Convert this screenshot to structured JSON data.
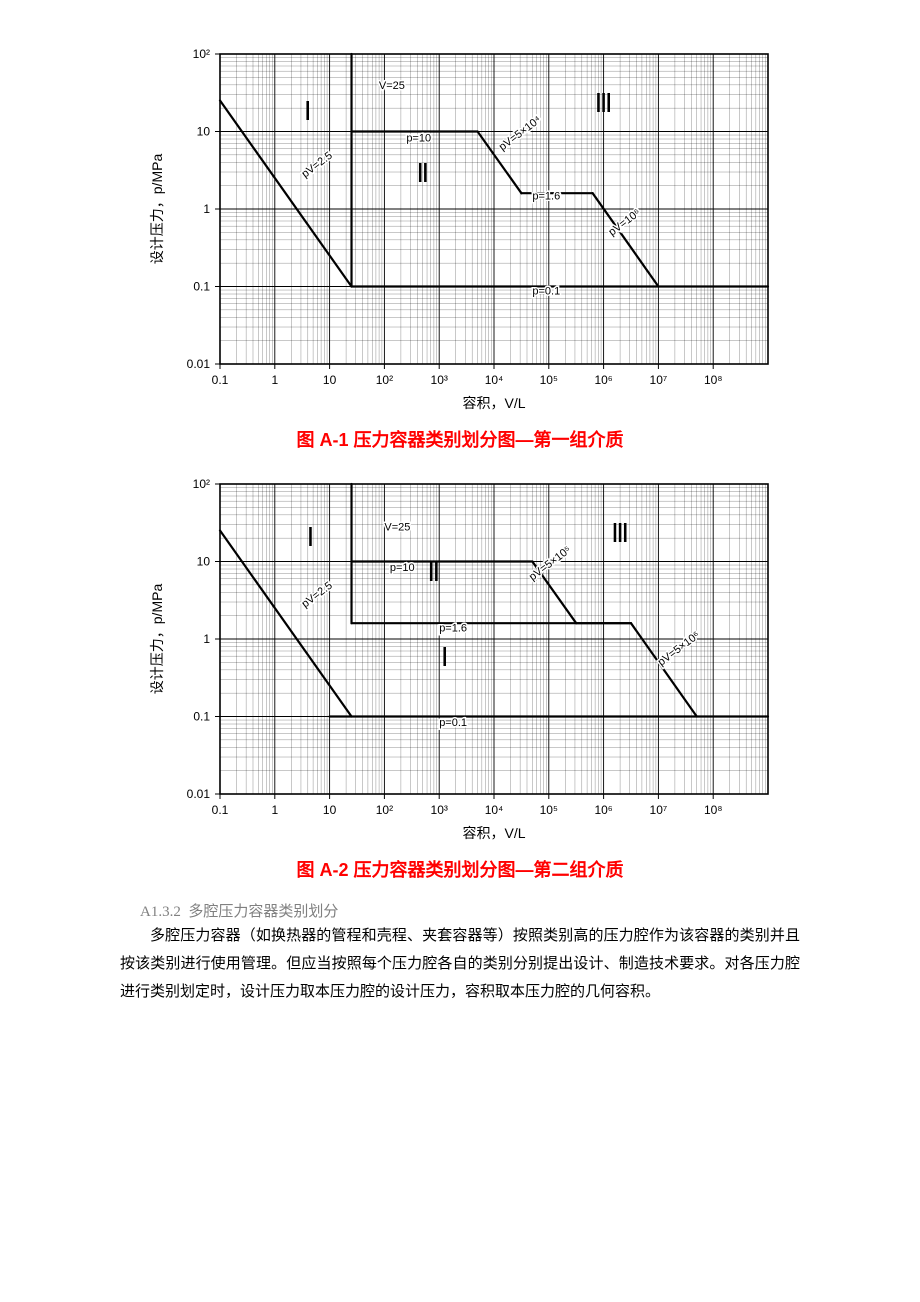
{
  "page": {
    "background": "#ffffff",
    "text_color": "#000000",
    "caption_color": "#ff0000",
    "section_num_color": "#808080"
  },
  "chart_common": {
    "type": "log-log-region-diagram",
    "xlabel": "容积，V/L",
    "ylabel": "设计压力，p/MPa",
    "axis_font_size": 14,
    "tick_font_size": 12,
    "line_color": "#000000",
    "grid_color": "#000000",
    "grid_minor_opacity": 0.55,
    "background": "#ffffff",
    "x_ticks": [
      "0.1",
      "1",
      "10",
      "10²",
      "10³",
      "10⁴",
      "10⁵",
      "10⁶",
      "10⁷",
      "10⁸"
    ],
    "x_ticks_exp": [
      -1,
      0,
      1,
      2,
      3,
      4,
      5,
      6,
      7,
      8
    ],
    "y_ticks": [
      "0.01",
      "0.1",
      "1",
      "10",
      "10²"
    ],
    "y_ticks_exp": [
      -2,
      -1,
      0,
      1,
      2
    ],
    "xlim_exp": [
      -1,
      9
    ],
    "ylim_exp": [
      -2,
      2
    ],
    "line_width_major": 1.6,
    "line_width_boundary": 2.2
  },
  "chart1": {
    "caption": "图 A-1  压力容器类别划分图—第一组介质",
    "region_labels": [
      {
        "text": "Ⅰ",
        "x_exp": 0.6,
        "y_exp": 1.15,
        "size": 26
      },
      {
        "text": "Ⅱ",
        "x_exp": 2.7,
        "y_exp": 0.35,
        "size": 26
      },
      {
        "text": "Ⅲ",
        "x_exp": 6.0,
        "y_exp": 1.25,
        "size": 26
      }
    ],
    "annot": [
      {
        "text": "V=25",
        "x_exp": 1.9,
        "y_exp": 1.55,
        "size": 11
      },
      {
        "text": "p=10",
        "x_exp": 2.4,
        "y_exp": 0.87,
        "size": 11
      },
      {
        "text": "pV=2.5",
        "x_exp": 0.55,
        "y_exp": 0.4,
        "size": 11,
        "rot": -37
      },
      {
        "text": "pV=5×10⁴",
        "x_exp": 4.15,
        "y_exp": 0.75,
        "size": 11,
        "rot": -37
      },
      {
        "text": "p=1.6",
        "x_exp": 4.7,
        "y_exp": 0.12,
        "size": 11
      },
      {
        "text": "pV=10⁶",
        "x_exp": 6.15,
        "y_exp": -0.35,
        "size": 11,
        "rot": -37
      },
      {
        "text": "p=0.1",
        "x_exp": 4.7,
        "y_exp": -1.1,
        "size": 11
      }
    ],
    "boundaries": [
      {
        "type": "hline",
        "y_exp": -1,
        "x1_exp": 1.4,
        "x2_exp": 9
      },
      {
        "type": "vline",
        "x_exp": 1.4,
        "y1_exp": -1,
        "y2_exp": 2
      },
      {
        "type": "diag",
        "x1_exp": -1,
        "y1_exp": 1.4,
        "x2_exp": 1.4,
        "y2_exp": -1
      },
      {
        "type": "hline",
        "y_exp": 1,
        "x1_exp": 1.4,
        "x2_exp": 3.7
      },
      {
        "type": "diag",
        "x1_exp": 3.7,
        "y1_exp": 1,
        "x2_exp": 4.5,
        "y2_exp": 0.204
      },
      {
        "type": "hline",
        "y_exp": 0.204,
        "x1_exp": 4.5,
        "x2_exp": 5.8
      },
      {
        "type": "diag",
        "x1_exp": 5.8,
        "y1_exp": 0.204,
        "x2_exp": 7.0,
        "y2_exp": -1
      }
    ]
  },
  "chart2": {
    "caption": "图 A-2 压力容器类别划分图—第二组介质",
    "region_labels": [
      {
        "text": "Ⅰ",
        "x_exp": 0.65,
        "y_exp": 1.2,
        "size": 26
      },
      {
        "text": "Ⅱ",
        "x_exp": 2.9,
        "y_exp": 0.75,
        "size": 26
      },
      {
        "text": "Ⅰ",
        "x_exp": 3.1,
        "y_exp": -0.35,
        "size": 26
      },
      {
        "text": "Ⅲ",
        "x_exp": 6.3,
        "y_exp": 1.25,
        "size": 26
      }
    ],
    "annot": [
      {
        "text": "V=25",
        "x_exp": 2.0,
        "y_exp": 1.4,
        "size": 11
      },
      {
        "text": "p=10",
        "x_exp": 2.1,
        "y_exp": 0.88,
        "size": 11
      },
      {
        "text": "pV=2.5",
        "x_exp": 0.55,
        "y_exp": 0.4,
        "size": 11,
        "rot": -37
      },
      {
        "text": "pV=5×10⁵",
        "x_exp": 4.7,
        "y_exp": 0.75,
        "size": 11,
        "rot": -37
      },
      {
        "text": "p=1.6",
        "x_exp": 3.0,
        "y_exp": 0.1,
        "size": 11
      },
      {
        "text": "pV=5×10⁶",
        "x_exp": 7.05,
        "y_exp": -0.35,
        "size": 11,
        "rot": -37
      },
      {
        "text": "p=0.1",
        "x_exp": 3.0,
        "y_exp": -1.12,
        "size": 11
      }
    ],
    "boundaries": [
      {
        "type": "hline",
        "y_exp": -1,
        "x1_exp": 1,
        "x2_exp": 9
      },
      {
        "type": "vline",
        "x_exp": 1.4,
        "y1_exp": 0.204,
        "y2_exp": 2
      },
      {
        "type": "diag",
        "x1_exp": -1,
        "y1_exp": 1.4,
        "x2_exp": 1.4,
        "y2_exp": -1
      },
      {
        "type": "hline",
        "y_exp": 0.204,
        "x1_exp": 1.4,
        "x2_exp": 6.5
      },
      {
        "type": "hline",
        "y_exp": 1,
        "x1_exp": 1.4,
        "x2_exp": 4.7
      },
      {
        "type": "diag",
        "x1_exp": 4.7,
        "y1_exp": 1,
        "x2_exp": 5.5,
        "y2_exp": 0.204
      },
      {
        "type": "hline",
        "y_exp": 0.204,
        "x1_exp": 5.5,
        "x2_exp": 6.5
      },
      {
        "type": "diag",
        "x1_exp": 6.5,
        "y1_exp": 0.204,
        "x2_exp": 7.7,
        "y2_exp": -1
      }
    ]
  },
  "section": {
    "num": "A1.3.2",
    "title": "多腔压力容器类别划分",
    "body": "多腔压力容器（如换热器的管程和壳程、夹套容器等）按照类别高的压力腔作为该容器的类别并且按该类别进行使用管理。但应当按照每个压力腔各自的类别分别提出设计、制造技术要求。对各压力腔进行类别划定时，设计压力取本压力腔的设计压力，容积取本压力腔的几何容积。"
  }
}
